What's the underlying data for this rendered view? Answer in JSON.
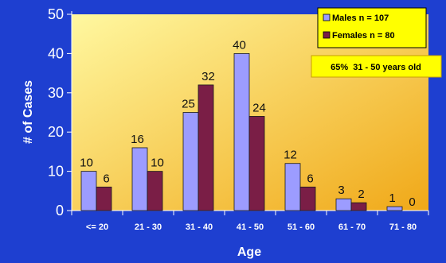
{
  "chart_data": {
    "type": "bar",
    "categories": [
      "<= 20",
      "21 - 30",
      "31 - 40",
      "41 - 50",
      "51 - 60",
      "61 - 70",
      "71 - 80"
    ],
    "series": [
      {
        "name": "Males n = 107",
        "values": [
          10,
          16,
          25,
          40,
          12,
          3,
          1
        ],
        "color": "#9c9cff"
      },
      {
        "name": "Females n = 80",
        "values": [
          6,
          10,
          32,
          24,
          6,
          2,
          0
        ],
        "color": "#7a1e46"
      }
    ],
    "title": "",
    "xlabel": "Age",
    "ylabel": "# of Cases",
    "ylim": [
      0,
      50
    ],
    "yticks": [
      0,
      10,
      20,
      30,
      40,
      50
    ],
    "grid": false,
    "legend_position": "top-right",
    "annotation": "65%  31 - 50 years old",
    "plot_background": [
      "#fff8a0",
      "#f0a818"
    ],
    "page_background": "#1e3fd0"
  }
}
